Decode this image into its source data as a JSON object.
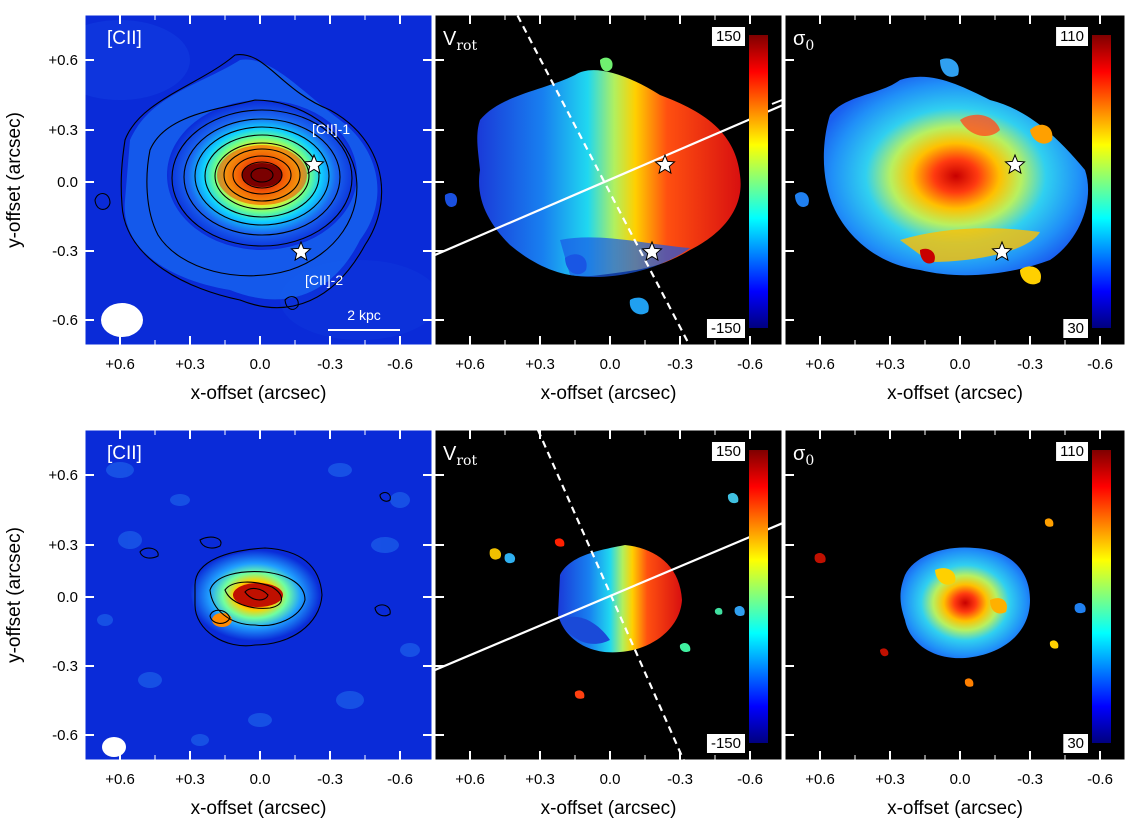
{
  "figure": {
    "rows": [
      {
        "panels": [
          {
            "kind": "intensity",
            "label": "[CII]",
            "annotations": {
              "source1": "[CII]-1",
              "source2": "[CII]-2",
              "scalebar": "2 kpc"
            },
            "contours": 10
          },
          {
            "kind": "velocity",
            "label_main": "V",
            "label_sub": "rot",
            "cbar_top": "150",
            "cbar_bottom": "-150"
          },
          {
            "kind": "dispersion",
            "label_main": "σ",
            "label_sub": "0",
            "cbar_top": "110",
            "cbar_bottom": "30"
          }
        ]
      },
      {
        "panels": [
          {
            "kind": "intensity",
            "label": "[CII]",
            "contours": 4
          },
          {
            "kind": "velocity",
            "label_main": "V",
            "label_sub": "rot",
            "cbar_top": "150",
            "cbar_bottom": "-150"
          },
          {
            "kind": "dispersion",
            "label_main": "σ",
            "label_sub": "0",
            "cbar_top": "110",
            "cbar_bottom": "30"
          }
        ]
      }
    ],
    "x_ticks": [
      "+0.6",
      "+0.3",
      "0.0",
      "-0.3",
      "-0.6"
    ],
    "y_ticks": [
      "+0.6",
      "+0.3",
      "0.0",
      "-0.3",
      "-0.6"
    ],
    "x_label": "x-offset (arcsec)",
    "y_label": "y-offset (arcsec)",
    "colors": {
      "jet_low": "#00007f",
      "jet_mid": "#7fff7f",
      "jet_high": "#7f0000",
      "background_dark": "#000000",
      "map_background": "#0a2bd8"
    }
  }
}
